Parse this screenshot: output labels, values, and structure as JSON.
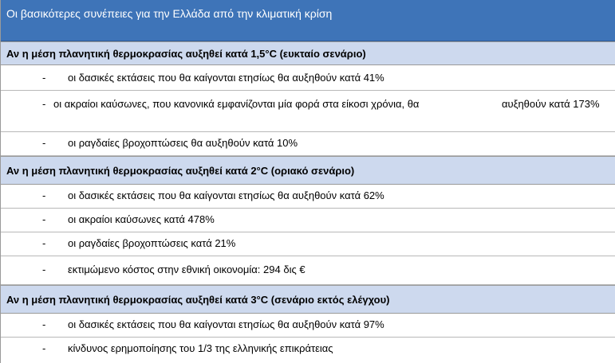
{
  "title": "Οι βασικότερες συνέπειες για την Ελλάδα από την κλιματική κρίση",
  "sections": [
    {
      "heading": "Αν η μέση πλανητική θερμοκρασίας αυξηθεί κατά 1,5°C (ευκταίο σενάριο)",
      "items": [
        {
          "dash": "-",
          "text": "οι δασικές εκτάσεις που θα καίγονται ετησίως θα αυξηθούν κατά 41%"
        },
        {
          "dash": "-",
          "text": "οι ακραίοι καύσωνες, που κανονικά εμφανίζονται μία φορά στα είκοσι χρόνια, θα",
          "text2": "αυξηθούν κατά 173%"
        },
        {
          "dash": "-",
          "text": "οι ραγδαίες βροχοπτώσεις θα αυξηθούν κατά 10%"
        }
      ]
    },
    {
      "heading": "Αν η μέση πλανητική θερμοκρασίας αυξηθεί κατά 2°C (οριακό σενάριο)",
      "items": [
        {
          "dash": "-",
          "text": "οι δασικές εκτάσεις που θα καίγονται ετησίως θα αυξηθούν κατά 62%"
        },
        {
          "dash": "-",
          "text": "οι ακραίοι καύσωνες κατά 478%"
        },
        {
          "dash": "-",
          "text": "οι ραγδαίες βροχοπτώσεις κατά 21%"
        },
        {
          "dash": "-",
          "text": "εκτιμώμενο κόστος στην εθνική οικονομία: 294 δις €"
        }
      ]
    },
    {
      "heading": "Αν η μέση πλανητική θερμοκρασίας αυξηθεί κατά 3°C (σενάριο εκτός ελέγχου)",
      "items": [
        {
          "dash": "-",
          "text": "οι δασικές εκτάσεις που θα καίγονται ετησίως θα αυξηθούν κατά 97%"
        },
        {
          "dash": "-",
          "text": "κίνδυνος ερημοποίησης του 1/3 της ελληνικής επικράτειας"
        }
      ]
    }
  ],
  "colors": {
    "title_bg": "#3e74b8",
    "title_text": "#ffffff",
    "section_bg": "#cdd9ee",
    "row_border": "#b8b8b8"
  }
}
